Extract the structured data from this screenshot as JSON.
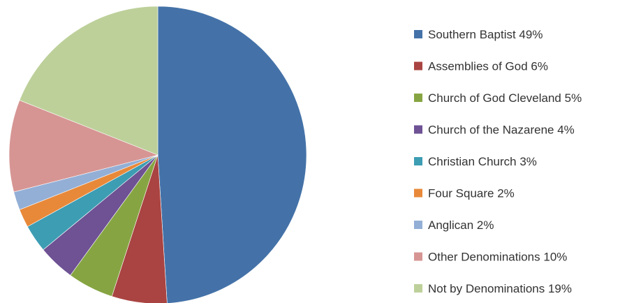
{
  "chart_data": {
    "type": "pie",
    "title": "",
    "legend_position": "right",
    "slices": [
      {
        "label": "Southern Baptist 49%",
        "value": 49,
        "color": "#4472A8"
      },
      {
        "label": "Assemblies of God 6%",
        "value": 6,
        "color": "#A94442"
      },
      {
        "label": "Church of God Cleveland 5%",
        "value": 5,
        "color": "#86A542"
      },
      {
        "label": "Church of the Nazarene 4%",
        "value": 4,
        "color": "#6E5294"
      },
      {
        "label": "Christian Church 3%",
        "value": 3,
        "color": "#3D9DB3"
      },
      {
        "label": "Four Square 2%",
        "value": 2,
        "color": "#E8893A"
      },
      {
        "label": "Anglican 2%",
        "value": 2,
        "color": "#93AFD6"
      },
      {
        "label": "Other Denominations 10%",
        "value": 10,
        "color": "#D69593"
      },
      {
        "label": "Not by Denominations 19%",
        "value": 19,
        "color": "#BDD09A"
      }
    ]
  }
}
